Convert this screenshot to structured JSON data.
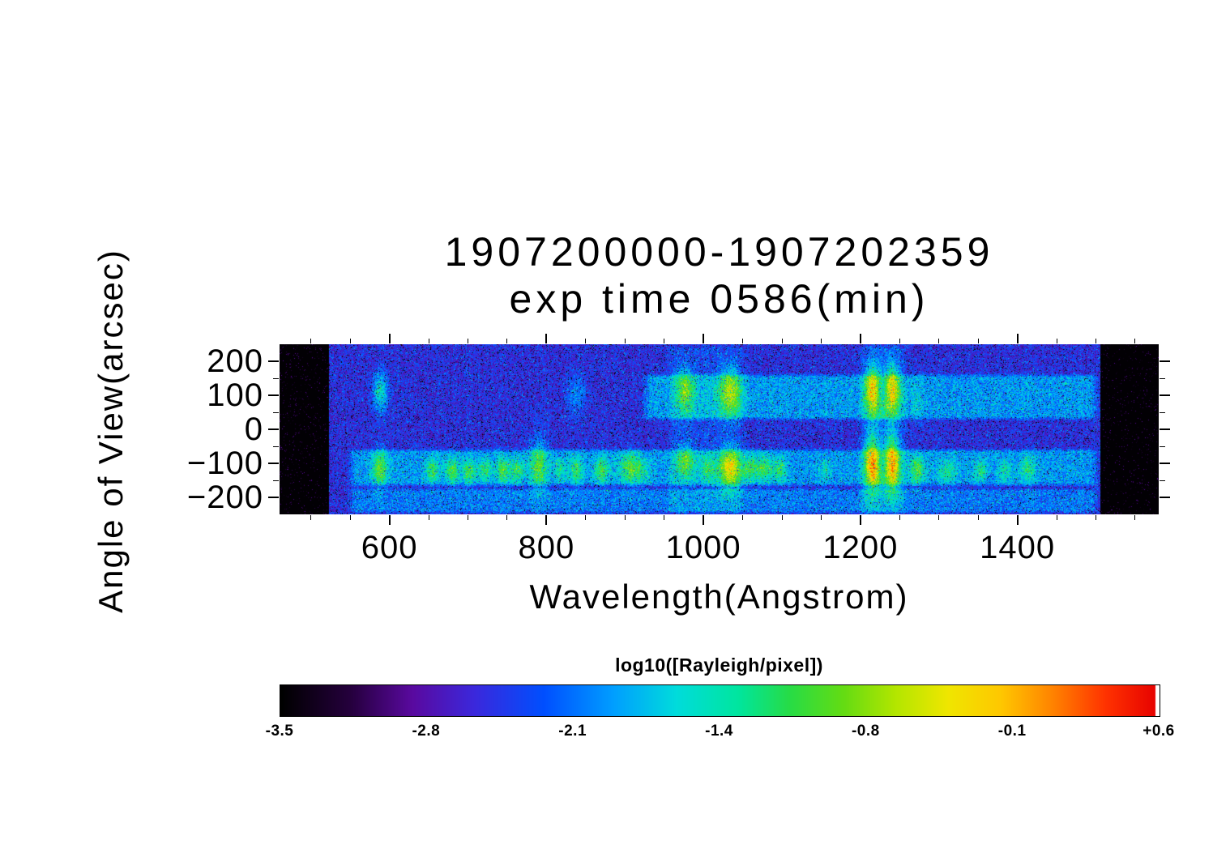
{
  "chart_data": {
    "type": "heatmap",
    "title_lines": [
      "1907200000-1907202359",
      "exp time 0586(min)"
    ],
    "x_axis": {
      "label": "Wavelength(Angstrom)",
      "range": [
        460,
        1580
      ],
      "major_ticks": [
        600,
        800,
        1000,
        1200,
        1400
      ],
      "tick_labels": [
        "600",
        "800",
        "1000",
        "1200",
        "1400"
      ],
      "minor_tick_step": 50
    },
    "y_axis": {
      "label": "Angle of View(arcsec)",
      "range": [
        -250,
        250
      ],
      "major_ticks": [
        200,
        100,
        0,
        -100,
        -200
      ],
      "tick_labels": [
        "200",
        "100",
        "0",
        "−100",
        "−200"
      ],
      "minor_tick_step": 50
    },
    "colorbar": {
      "label": "log10([Rayleigh/pixel])",
      "range": [
        -3.5,
        0.6
      ],
      "tick_labels": [
        "-3.5",
        "-2.8",
        "-2.1",
        "-1.4",
        "-0.8",
        "-0.1",
        "+0.6"
      ],
      "end_cap_color": "#ffffff",
      "stops": [
        [
          0.0,
          "#000000"
        ],
        [
          0.08,
          "#26003e"
        ],
        [
          0.15,
          "#5a0aa0"
        ],
        [
          0.22,
          "#3c28dc"
        ],
        [
          0.3,
          "#0050ff"
        ],
        [
          0.38,
          "#00a0ff"
        ],
        [
          0.45,
          "#00dcdc"
        ],
        [
          0.52,
          "#00e6a0"
        ],
        [
          0.58,
          "#28dc46"
        ],
        [
          0.64,
          "#64dc14"
        ],
        [
          0.7,
          "#b4e600"
        ],
        [
          0.76,
          "#f0e600"
        ],
        [
          0.82,
          "#ffc800"
        ],
        [
          0.88,
          "#ff8200"
        ],
        [
          0.94,
          "#ff3200"
        ],
        [
          1.0,
          "#e60000"
        ]
      ]
    },
    "image_model": {
      "background_level": -2.55,
      "noise_sigma": 0.25,
      "dark_speckle_prob": 0.05,
      "bright_speckle_prob": 0.02,
      "black_bands_wavelength": [
        [
          460,
          523
        ],
        [
          1506,
          1580
        ]
      ],
      "bands": [
        {
          "name": "upper-slit-band",
          "wavelength": [
            920,
            1506
          ],
          "angle": [
            25,
            165
          ],
          "amp": 0.6
        },
        {
          "name": "lower-slit-band",
          "wavelength": [
            545,
            1506
          ],
          "angle": [
            -170,
            -55
          ],
          "amp": 0.6
        },
        {
          "name": "bottom-edge-band",
          "wavelength": [
            545,
            1506
          ],
          "angle": [
            -250,
            -170
          ],
          "amp": 0.45
        },
        {
          "name": "column-glow-1034",
          "wavelength": [
            950,
            1055
          ],
          "angle": [
            -250,
            250
          ],
          "amp": 0.18
        },
        {
          "name": "column-glow-lyman",
          "wavelength": [
            1196,
            1262
          ],
          "angle": [
            -250,
            250
          ],
          "amp": 0.22
        }
      ],
      "emission_blobs_format": [
        "wavelength",
        "angle",
        "sigma_wavelength",
        "sigma_angle",
        "amplitude"
      ],
      "emission_blobs": [
        [
          588,
          110,
          7,
          42,
          1.0
        ],
        [
          588,
          -115,
          7,
          38,
          1.0
        ],
        [
          655,
          -120,
          6,
          26,
          0.85
        ],
        [
          680,
          -122,
          6,
          26,
          0.95
        ],
        [
          702,
          -125,
          6,
          24,
          0.85
        ],
        [
          722,
          -120,
          6,
          24,
          0.75
        ],
        [
          745,
          -120,
          6,
          26,
          0.95
        ],
        [
          763,
          -122,
          6,
          24,
          0.85
        ],
        [
          790,
          -105,
          8,
          55,
          1.0
        ],
        [
          817,
          -122,
          5,
          22,
          0.65
        ],
        [
          838,
          105,
          8,
          42,
          0.5
        ],
        [
          838,
          -120,
          6,
          28,
          0.8
        ],
        [
          870,
          -120,
          7,
          28,
          0.85
        ],
        [
          905,
          -115,
          9,
          32,
          0.95
        ],
        [
          922,
          -120,
          8,
          28,
          0.5
        ],
        [
          977,
          115,
          8,
          46,
          1.0
        ],
        [
          977,
          -95,
          8,
          34,
          0.9
        ],
        [
          1005,
          -115,
          6,
          24,
          0.6
        ],
        [
          1034,
          110,
          10,
          48,
          1.2
        ],
        [
          1034,
          -115,
          10,
          42,
          1.45
        ],
        [
          1060,
          -115,
          7,
          26,
          0.8
        ],
        [
          1078,
          -115,
          7,
          26,
          0.85
        ],
        [
          1097,
          -118,
          6,
          24,
          0.75
        ],
        [
          1155,
          -120,
          5,
          20,
          0.45
        ],
        [
          1216,
          115,
          7,
          52,
          1.7
        ],
        [
          1216,
          -100,
          7,
          58,
          1.95
        ],
        [
          1240,
          115,
          7,
          52,
          1.6
        ],
        [
          1240,
          -100,
          7,
          58,
          1.85
        ],
        [
          1228,
          115,
          8,
          26,
          -0.5
        ],
        [
          1228,
          -100,
          8,
          30,
          -0.5
        ],
        [
          1272,
          -120,
          7,
          30,
          0.95
        ],
        [
          1272,
          80,
          6,
          50,
          0.3
        ],
        [
          1311,
          -125,
          8,
          26,
          0.65
        ],
        [
          1353,
          -122,
          6,
          22,
          0.7
        ],
        [
          1384,
          -120,
          6,
          22,
          0.6
        ],
        [
          1413,
          -118,
          7,
          24,
          0.7
        ]
      ]
    }
  }
}
